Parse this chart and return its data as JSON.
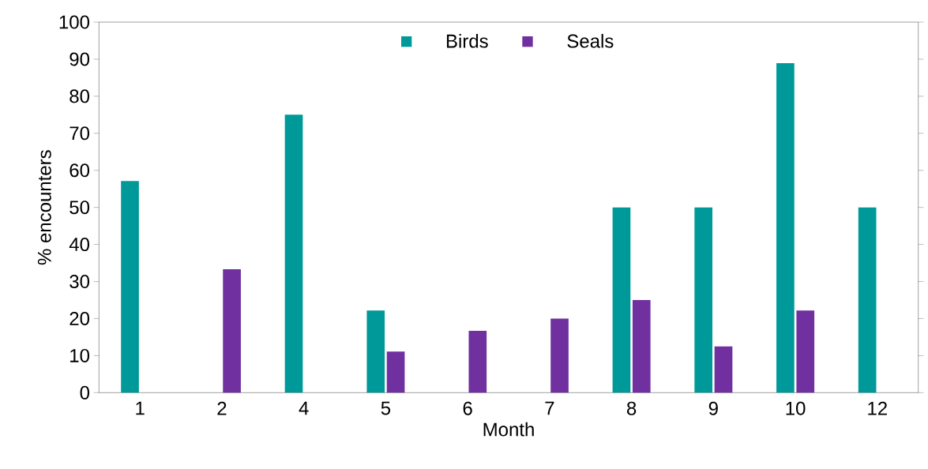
{
  "chart_data": {
    "type": "bar",
    "xlabel": "Month",
    "ylabel": "% encounters",
    "categories": [
      "1",
      "2",
      "4",
      "5",
      "6",
      "7",
      "8",
      "9",
      "10",
      "12"
    ],
    "series": [
      {
        "name": "Birds",
        "color": "#009999",
        "values": [
          57.1,
          0,
          75,
          22.2,
          0,
          0,
          50,
          50,
          88.9,
          50
        ]
      },
      {
        "name": "Seals",
        "color": "#7030a0",
        "values": [
          0,
          33.3,
          0,
          11.1,
          16.7,
          20,
          25,
          12.5,
          22.2,
          0
        ]
      }
    ],
    "ylim": [
      0,
      100
    ],
    "yticks": [
      0,
      10,
      20,
      30,
      40,
      50,
      60,
      70,
      80,
      90,
      100
    ],
    "grid": false,
    "legend": "top"
  }
}
